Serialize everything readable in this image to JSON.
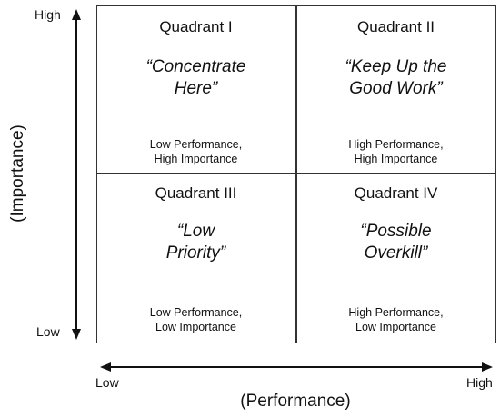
{
  "y_axis": {
    "title": "(Importance)",
    "high": "High",
    "low": "Low"
  },
  "x_axis": {
    "title": "(Performance)",
    "low": "Low",
    "high": "High"
  },
  "quadrants": [
    {
      "title": "Quadrant I",
      "slogan_line1": "“Concentrate",
      "slogan_line2": "Here”",
      "desc_line1": "Low Performance,",
      "desc_line2": "High Importance"
    },
    {
      "title": "Quadrant II",
      "slogan_line1": "“Keep Up the",
      "slogan_line2": "Good Work”",
      "desc_line1": "High Performance,",
      "desc_line2": "High Importance"
    },
    {
      "title": "Quadrant III",
      "slogan_line1": "“Low",
      "slogan_line2": "Priority”",
      "desc_line1": "Low Performance,",
      "desc_line2": "Low Importance"
    },
    {
      "title": "Quadrant IV",
      "slogan_line1": "“Possible",
      "slogan_line2": "Overkill”",
      "desc_line1": "High Performance,",
      "desc_line2": "Low Importance"
    }
  ]
}
